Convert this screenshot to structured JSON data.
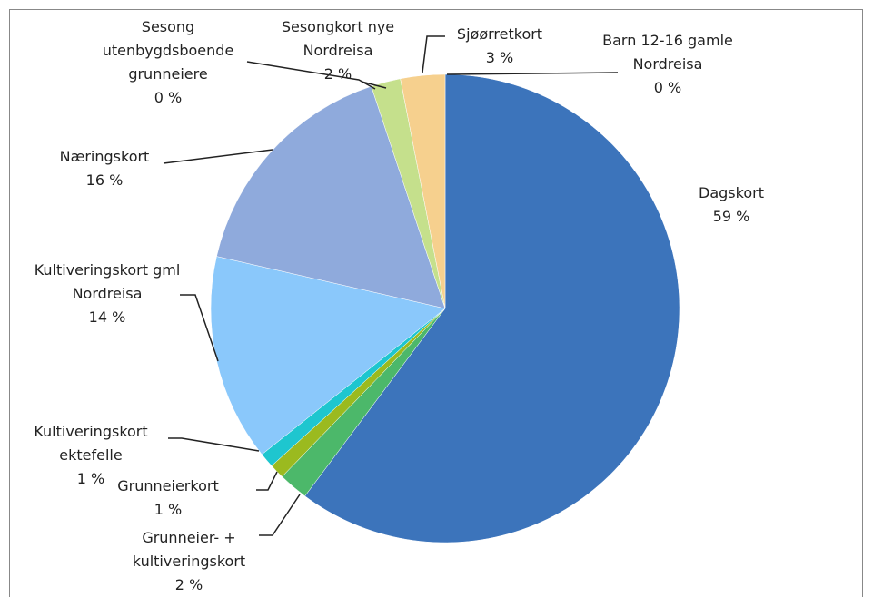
{
  "chart_data": {
    "type": "pie",
    "categories": [
      "Dagskort",
      "Grunneier- + kultiveringskort",
      "Grunneierkort",
      "Kultiveringskort ektefelle",
      "Kultiveringskort gml Nordreisa",
      "Næringskort",
      "Sesong utenbygdsboende grunneiere",
      "Sesongkort nye Nordreisa",
      "Sjøørretkort",
      "Barn 12-16 gamle Nordreisa"
    ],
    "values": [
      59,
      2,
      1,
      1,
      14,
      16,
      0,
      2,
      3,
      0
    ],
    "value_labels": [
      "59 %",
      "2 %",
      "1 %",
      "1 %",
      "14 %",
      "16 %",
      "0 %",
      "2 %",
      "3 %",
      "0 %"
    ],
    "colors": [
      "#3c74bb",
      "#4cb86a",
      "#9bba1f",
      "#1ec6cf",
      "#8ac8fb",
      "#8faadc",
      "#a8d08d",
      "#c5e08c",
      "#f6d08e",
      "#e8a0a0"
    ]
  }
}
